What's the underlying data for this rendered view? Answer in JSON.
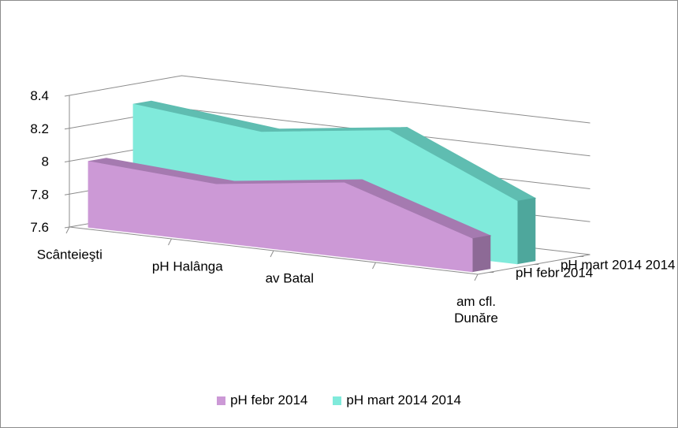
{
  "chart_data": {
    "type": "area",
    "subtype": "3d-area",
    "categories": [
      "Scânteieşti",
      "pH Halânga",
      "av Batal",
      "am cfl. Dunăre"
    ],
    "yticks": [
      "7.6",
      "7.8",
      "8",
      "8.2",
      "8.4"
    ],
    "ylim": [
      7.6,
      8.4
    ],
    "grid": true,
    "legend_position": "bottom",
    "series": [
      {
        "name": "pH febr 2014",
        "values": [
          8.0,
          7.95,
          8.05,
          7.8
        ],
        "color": "#cc99d6",
        "top_color": "#a57ab0",
        "side_color": "#8d6a96"
      },
      {
        "name": "pH mart 2014 2014",
        "values": [
          8.3,
          8.22,
          8.32,
          7.98
        ],
        "color": "#80eadb",
        "top_color": "#5fbdb1",
        "side_color": "#4ea79c"
      }
    ]
  }
}
